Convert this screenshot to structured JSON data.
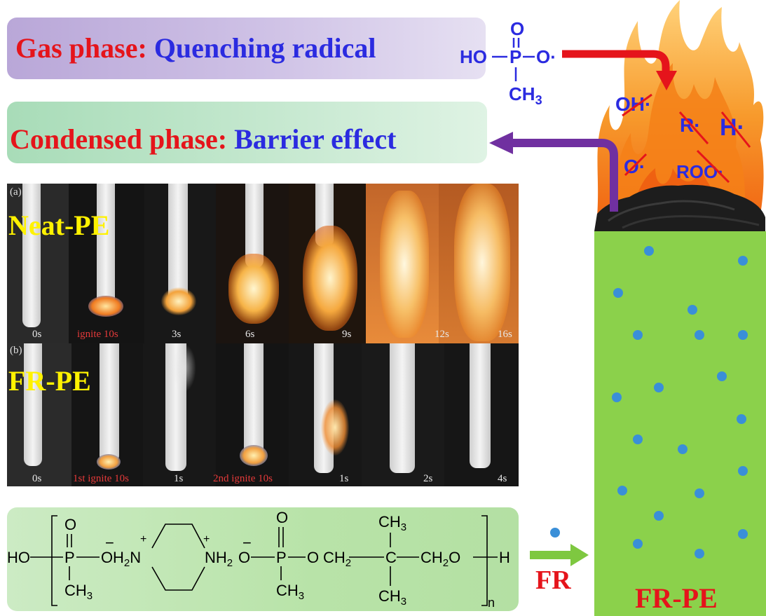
{
  "gas_phase": {
    "label": "Gas phase:",
    "effect": "Quenching radical"
  },
  "condensed_phase": {
    "label": "Condensed phase:",
    "effect": "Barrier effect"
  },
  "radical_molecule": {
    "o_top": "O",
    "ho": "HO",
    "p": "P",
    "o_right": "O·",
    "ch3": "CH",
    "sub3": "3"
  },
  "radicals": {
    "oh": "OH·",
    "r": "R·",
    "h": "H·",
    "o": "O·",
    "roo": "ROO·"
  },
  "photos_a": {
    "panel": "(a)",
    "name": "Neat-PE",
    "times": [
      "0s",
      "ignite 10s",
      "3s",
      "6s",
      "9s",
      "12s",
      "16s"
    ]
  },
  "photos_b": {
    "panel": "(b)",
    "name": "FR-PE",
    "times": [
      "0s",
      "1st ignite 10s",
      "1s",
      "2nd ignite 10s",
      "1s",
      "2s",
      "4s"
    ]
  },
  "polymer": {
    "ho": "HO",
    "h": "H",
    "n": "n",
    "o1": "O",
    "p1": "P",
    "ch3_1": "CH",
    "o_minus1": "O",
    "h2n": "H",
    "two_a": "2",
    "n1": "N",
    "plus": "+",
    "n2": "NH",
    "two_b": "2",
    "o_minus2": "O",
    "o2": "O",
    "p2": "P",
    "ch3_2": "CH",
    "o3": "O",
    "ch2a": "CH",
    "two_c": "2",
    "c": "C",
    "ch3_top": "CH",
    "ch3_bot": "CH",
    "ch2b": "CH",
    "two_d": "2",
    "o4": "O",
    "sub3": "3",
    "minus": "−"
  },
  "arrow_label": "FR",
  "block_label": "FR-PE",
  "colors": {
    "red": "#e5141b",
    "blue": "#2b2be0",
    "purple": "#7030a0",
    "green_block": "#8bd14b",
    "dot": "#3a8fd8",
    "arrow_green": "#7ec840"
  }
}
